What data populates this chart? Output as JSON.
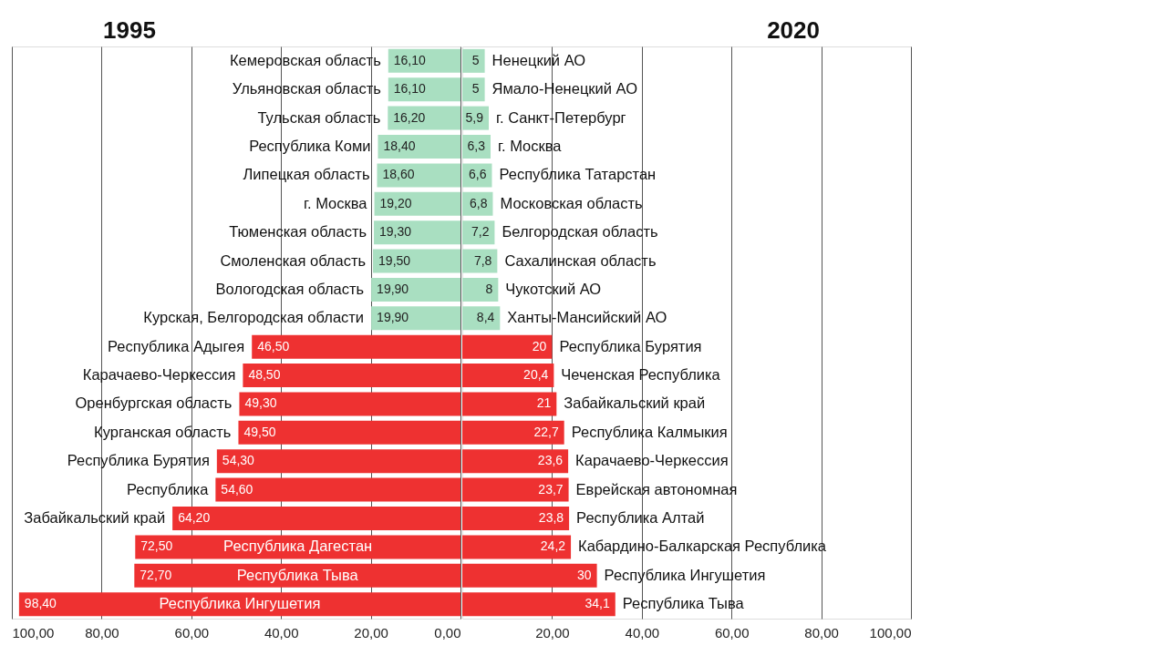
{
  "chart_data": [
    {
      "type": "bar",
      "orientation": "horizontal",
      "title": "1995",
      "categories": [
        "Кемеровская область",
        "Ульяновская область",
        "Тульская область",
        "Республика Коми",
        "Липецкая область",
        "г. Москва",
        "Тюменская область",
        "Смоленская область",
        "Вологодская область",
        "Курская, Белгородская области",
        "Республика Адыгея",
        "Карачаево-Черкессия",
        "Оренбургская область",
        "Курганская область",
        "Республика Бурятия",
        "Республика",
        "Забайкальский край",
        "Республика Дагестан",
        "Республика Тыва",
        "Республика Ингушетия"
      ],
      "values": [
        16.1,
        16.1,
        16.2,
        18.4,
        18.6,
        19.2,
        19.3,
        19.5,
        19.9,
        19.9,
        46.5,
        48.5,
        49.3,
        49.5,
        54.3,
        54.6,
        64.2,
        72.5,
        72.7,
        98.4
      ],
      "value_labels": [
        "16,10",
        "16,10",
        "16,20",
        "18,40",
        "18,60",
        "19,20",
        "19,30",
        "19,50",
        "19,90",
        "19,90",
        "46,50",
        "48,50",
        "49,30",
        "49,50",
        "54,30",
        "54,60",
        "64,20",
        "72,50",
        "72,70",
        "98,40"
      ],
      "colors": [
        "#a9dfc1",
        "#a9dfc1",
        "#a9dfc1",
        "#a9dfc1",
        "#a9dfc1",
        "#a9dfc1",
        "#a9dfc1",
        "#a9dfc1",
        "#a9dfc1",
        "#a9dfc1",
        "#ee3131",
        "#ee3131",
        "#ee3131",
        "#ee3131",
        "#ee3131",
        "#ee3131",
        "#ee3131",
        "#ee3131",
        "#ee3131",
        "#ee3131"
      ],
      "xlim": [
        100,
        0
      ],
      "xticks": [
        {
          "value": 100,
          "label": "100,00"
        },
        {
          "value": 80,
          "label": "80,00"
        },
        {
          "value": 60,
          "label": "60,00"
        },
        {
          "value": 40,
          "label": "40,00"
        },
        {
          "value": 20,
          "label": "20,00"
        },
        {
          "value": 0,
          "label": "0,00"
        }
      ],
      "grid": "x"
    },
    {
      "type": "bar",
      "orientation": "horizontal",
      "title": "2020",
      "categories": [
        "Ненецкий АО",
        "Ямало-Ненецкий АО",
        "г. Санкт-Петербург",
        "г. Москва",
        "Республика Татарстан",
        "Московская область",
        "Белгородская область",
        "Сахалинская область",
        "Чукотский АО",
        "Ханты-Мансийский АО",
        "Республика Бурятия",
        "Чеченская Республика",
        "Забайкальский край",
        "Республика Калмыкия",
        "Карачаево-Черкессия",
        "Еврейская автономная",
        "Республика Алтай",
        "Кабардино-Балкарская Республика",
        "Республика Ингушетия",
        "Республика Тыва"
      ],
      "values": [
        5,
        5,
        5.9,
        6.3,
        6.6,
        6.8,
        7.2,
        7.8,
        8,
        8.4,
        20,
        20.4,
        21,
        22.7,
        23.6,
        23.7,
        23.8,
        24.2,
        30,
        34.1
      ],
      "value_labels": [
        "5",
        "5",
        "5,9",
        "6,3",
        "6,6",
        "6,8",
        "7,2",
        "7,8",
        "8",
        "8,4",
        "20",
        "20,4",
        "21",
        "22,7",
        "23,6",
        "23,7",
        "23,8",
        "24,2",
        "30",
        "34,1"
      ],
      "colors": [
        "#a9dfc1",
        "#a9dfc1",
        "#a9dfc1",
        "#a9dfc1",
        "#a9dfc1",
        "#a9dfc1",
        "#a9dfc1",
        "#a9dfc1",
        "#a9dfc1",
        "#a9dfc1",
        "#ee3131",
        "#ee3131",
        "#ee3131",
        "#ee3131",
        "#ee3131",
        "#ee3131",
        "#ee3131",
        "#ee3131",
        "#ee3131",
        "#ee3131"
      ],
      "xlim": [
        0,
        100
      ],
      "xticks": [
        {
          "value": 20,
          "label": "20,00"
        },
        {
          "value": 40,
          "label": "40,00"
        },
        {
          "value": 60,
          "label": "60,00"
        },
        {
          "value": 80,
          "label": "80,00"
        },
        {
          "value": 100,
          "label": "100,00"
        }
      ],
      "grid": "x"
    }
  ]
}
